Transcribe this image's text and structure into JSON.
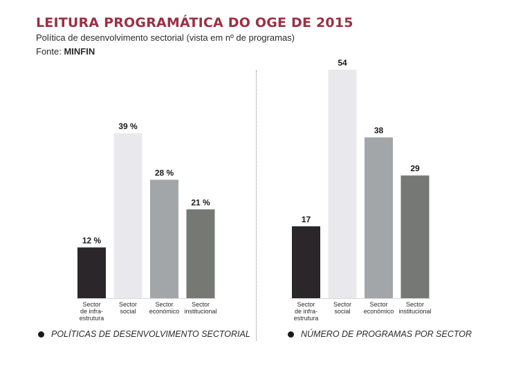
{
  "header": {
    "title": "LEITURA PROGRAMÁTICA DO OGE DE 2015",
    "subtitle": "Política de desenvolvimento sectorial (vista em nº de programas)",
    "source_label": "Fonte: ",
    "source_name": "MINFIN"
  },
  "legends": {
    "left": "POLÍTICAS DE DESENVOLVIMENTO SECTORIAL",
    "right": "NÚMERO DE PROGRAMAS POR SECTOR"
  },
  "colors": {
    "sector_infra": "#2a2629",
    "sector_social": "#e9e8ec",
    "sector_economico": "#a3a6a9",
    "sector_institucional": "#767874"
  },
  "chart_data": [
    {
      "type": "bar",
      "categories": [
        "Sector de infra-estrutura",
        "Sector social",
        "Sector económico",
        "Sector institucional"
      ],
      "category_lines": [
        [
          "Sector",
          "de infra-",
          "estrutura"
        ],
        [
          "Sector",
          "social"
        ],
        [
          "Sector",
          "económico"
        ],
        [
          "Sector",
          "institucional"
        ]
      ],
      "values": [
        12,
        39,
        28,
        21
      ],
      "value_labels": [
        "12 %",
        "39 %",
        "28 %",
        "21 %"
      ],
      "ylim": [
        0,
        54
      ],
      "grid": false
    },
    {
      "type": "bar",
      "categories": [
        "Sector de infra-estrutura",
        "Sector social",
        "Sector económico",
        "Sector institucional"
      ],
      "category_lines": [
        [
          "Sector",
          "de infra-",
          "estrutura"
        ],
        [
          "Sector",
          "social"
        ],
        [
          "Sector",
          "económico"
        ],
        [
          "Sector",
          "institucional"
        ]
      ],
      "values": [
        17,
        54,
        38,
        29
      ],
      "value_labels": [
        "17",
        "54",
        "38",
        "29"
      ],
      "ylim": [
        0,
        54
      ],
      "grid": false
    }
  ]
}
